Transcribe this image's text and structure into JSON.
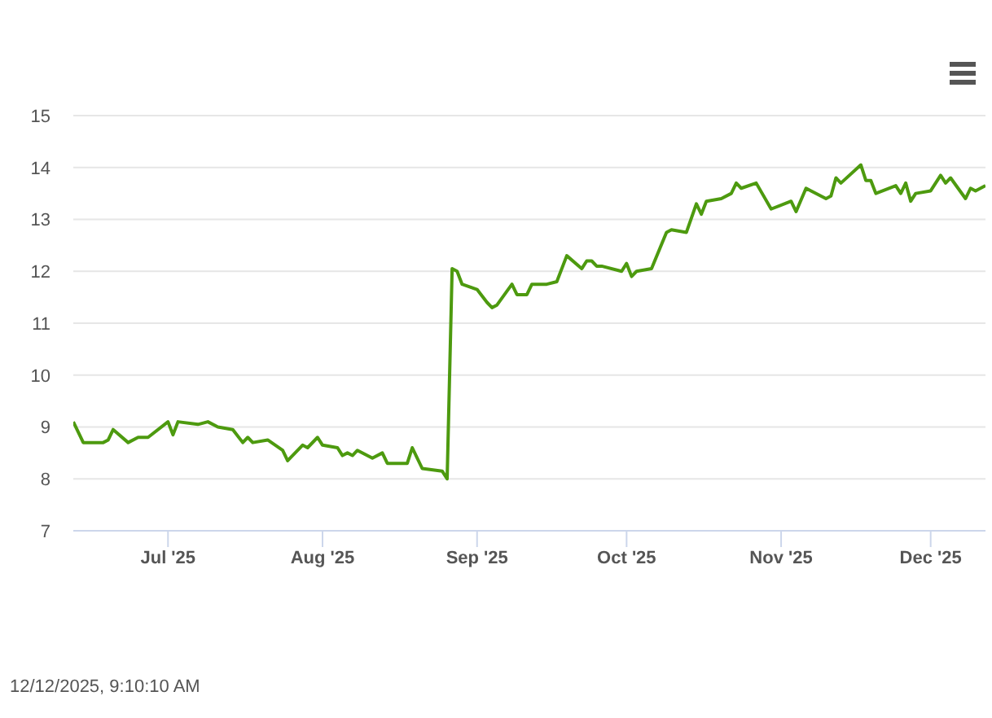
{
  "chart_data": {
    "type": "line",
    "x": [
      "2025-06-12",
      "2025-06-14",
      "2025-06-18",
      "2025-06-19",
      "2025-06-20",
      "2025-06-23",
      "2025-06-25",
      "2025-06-27",
      "2025-07-01",
      "2025-07-02",
      "2025-07-03",
      "2025-07-07",
      "2025-07-09",
      "2025-07-11",
      "2025-07-14",
      "2025-07-16",
      "2025-07-17",
      "2025-07-18",
      "2025-07-21",
      "2025-07-24",
      "2025-07-25",
      "2025-07-28",
      "2025-07-29",
      "2025-07-31",
      "2025-08-01",
      "2025-08-04",
      "2025-08-05",
      "2025-08-06",
      "2025-08-07",
      "2025-08-08",
      "2025-08-11",
      "2025-08-13",
      "2025-08-14",
      "2025-08-18",
      "2025-08-19",
      "2025-08-21",
      "2025-08-25",
      "2025-08-26",
      "2025-08-27",
      "2025-08-28",
      "2025-08-29",
      "2025-09-01",
      "2025-09-03",
      "2025-09-04",
      "2025-09-05",
      "2025-09-08",
      "2025-09-09",
      "2025-09-11",
      "2025-09-12",
      "2025-09-15",
      "2025-09-17",
      "2025-09-19",
      "2025-09-22",
      "2025-09-23",
      "2025-09-24",
      "2025-09-25",
      "2025-09-26",
      "2025-09-30",
      "2025-10-01",
      "2025-10-02",
      "2025-10-03",
      "2025-10-06",
      "2025-10-09",
      "2025-10-10",
      "2025-10-13",
      "2025-10-15",
      "2025-10-16",
      "2025-10-17",
      "2025-10-20",
      "2025-10-22",
      "2025-10-23",
      "2025-10-24",
      "2025-10-27",
      "2025-10-30",
      "2025-11-03",
      "2025-11-04",
      "2025-11-06",
      "2025-11-07",
      "2025-11-10",
      "2025-11-11",
      "2025-11-12",
      "2025-11-13",
      "2025-11-17",
      "2025-11-18",
      "2025-11-19",
      "2025-11-20",
      "2025-11-24",
      "2025-11-25",
      "2025-11-26",
      "2025-11-27",
      "2025-11-28",
      "2025-12-01",
      "2025-12-03",
      "2025-12-04",
      "2025-12-05",
      "2025-12-08",
      "2025-12-09",
      "2025-12-10",
      "2025-12-12"
    ],
    "series": [
      {
        "color": "#4d9a0f",
        "values": [
          9.1,
          8.7,
          8.7,
          8.75,
          8.95,
          8.7,
          8.8,
          8.8,
          9.1,
          8.85,
          9.1,
          9.05,
          9.1,
          9.0,
          8.95,
          8.7,
          8.8,
          8.7,
          8.75,
          8.55,
          8.35,
          8.65,
          8.6,
          8.8,
          8.65,
          8.6,
          8.45,
          8.5,
          8.45,
          8.55,
          8.4,
          8.5,
          8.3,
          8.3,
          8.6,
          8.2,
          8.15,
          8.0,
          12.05,
          12.0,
          11.75,
          11.65,
          11.4,
          11.3,
          11.35,
          11.75,
          11.55,
          11.55,
          11.75,
          11.75,
          11.8,
          12.3,
          12.05,
          12.2,
          12.2,
          12.1,
          12.1,
          12.0,
          12.15,
          11.9,
          12.0,
          12.05,
          12.75,
          12.8,
          12.75,
          13.3,
          13.1,
          13.35,
          13.4,
          13.5,
          13.7,
          13.6,
          13.7,
          13.2,
          13.35,
          13.15,
          13.6,
          13.55,
          13.4,
          13.45,
          13.8,
          13.7,
          14.05,
          13.75,
          13.75,
          13.5,
          13.65,
          13.5,
          13.7,
          13.35,
          13.5,
          13.55,
          13.85,
          13.7,
          13.8,
          13.4,
          13.6,
          13.55,
          13.65
        ]
      }
    ],
    "xlim": [
      "2025-06-12",
      "2025-12-12"
    ],
    "xticks": [
      {
        "value": "2025-07-01",
        "label": "Jul '25"
      },
      {
        "value": "2025-08-01",
        "label": "Aug '25"
      },
      {
        "value": "2025-09-01",
        "label": "Sep '25"
      },
      {
        "value": "2025-10-01",
        "label": "Oct '25"
      },
      {
        "value": "2025-11-01",
        "label": "Nov '25"
      },
      {
        "value": "2025-12-01",
        "label": "Dec '25"
      }
    ],
    "ylim": [
      7,
      15
    ],
    "yticks": [
      7,
      8,
      9,
      10,
      11,
      12,
      13,
      14,
      15
    ],
    "grid": "y",
    "marker": "none",
    "annotations": [
      "12/12/2025, 9:10:10 AM"
    ]
  }
}
